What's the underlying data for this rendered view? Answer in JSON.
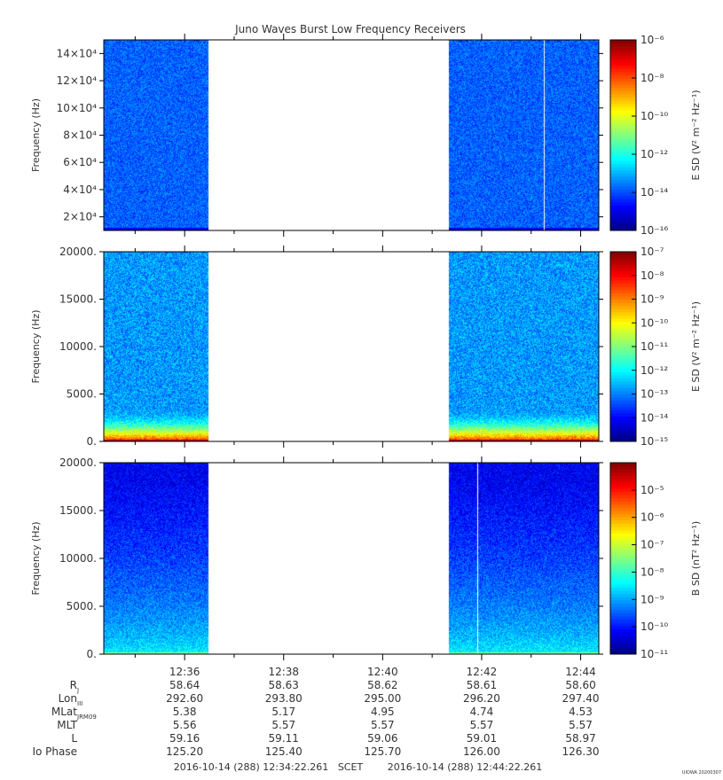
{
  "title": "Juno Waves Burst Low Frequency Receivers",
  "stamp": "UIOWA 20200307",
  "chart_data": [
    {
      "type": "heatmap",
      "panel": "top",
      "ylabel": "Frequency (Hz)",
      "ylim": [
        10000,
        150000
      ],
      "yticks": [
        {
          "value": 20000,
          "label": "2×10⁴"
        },
        {
          "value": 40000,
          "label": "4×10⁴"
        },
        {
          "value": 60000,
          "label": "6×10⁴"
        },
        {
          "value": 80000,
          "label": "8×10⁴"
        },
        {
          "value": 100000,
          "label": "10×10⁴"
        },
        {
          "value": 120000,
          "label": "12×10⁴"
        },
        {
          "value": 140000,
          "label": "14×10⁴"
        }
      ],
      "colorbar": {
        "label": "E SD (V² m⁻² Hz⁻¹)",
        "log_range": [
          -16,
          -6
        ],
        "ticks": [
          {
            "exp": -6,
            "label": "10⁻⁶"
          },
          {
            "exp": -8,
            "label": "10⁻⁸"
          },
          {
            "exp": -10,
            "label": "10⁻¹⁰"
          },
          {
            "exp": -12,
            "label": "10⁻¹²"
          },
          {
            "exp": -14,
            "label": "10⁻¹⁴"
          },
          {
            "exp": -16,
            "label": "10⁻¹⁶"
          }
        ]
      },
      "data_segments": [
        {
          "x_start": "12:34:22",
          "x_end": "12:36:28"
        },
        {
          "x_start": "12:41:20",
          "x_end": "12:44:22"
        }
      ],
      "gap_lines": [
        "12:43:15"
      ],
      "profile": "uniform",
      "background_log": -13.8,
      "low_band": {
        "y_max": 12000,
        "log": -15
      }
    },
    {
      "type": "heatmap",
      "panel": "middle",
      "ylabel": "Frequency (Hz)",
      "ylim": [
        0,
        20000
      ],
      "yticks": [
        {
          "value": 0,
          "label": "0."
        },
        {
          "value": 5000,
          "label": "5000."
        },
        {
          "value": 10000,
          "label": "10000."
        },
        {
          "value": 15000,
          "label": "15000."
        },
        {
          "value": 20000,
          "label": "20000."
        }
      ],
      "colorbar": {
        "label": "E SD (V² m⁻² Hz⁻¹)",
        "log_range": [
          -15,
          -7
        ],
        "ticks": [
          {
            "exp": -7,
            "label": "10⁻⁷"
          },
          {
            "exp": -8,
            "label": "10⁻⁸"
          },
          {
            "exp": -9,
            "label": "10⁻⁹"
          },
          {
            "exp": -10,
            "label": "10⁻¹⁰"
          },
          {
            "exp": -11,
            "label": "10⁻¹¹"
          },
          {
            "exp": -12,
            "label": "10⁻¹²"
          },
          {
            "exp": -13,
            "label": "10⁻¹³"
          },
          {
            "exp": -14,
            "label": "10⁻¹⁴"
          },
          {
            "exp": -15,
            "label": "10⁻¹⁵"
          }
        ]
      },
      "data_segments": [
        {
          "x_start": "12:34:22",
          "x_end": "12:36:28"
        },
        {
          "x_start": "12:41:20",
          "x_end": "12:44:22"
        }
      ],
      "gap_lines": [],
      "profile": "low_enhanced",
      "background_log": -12.8,
      "low_band": {
        "y_max": 3500,
        "log": -8
      }
    },
    {
      "type": "heatmap",
      "panel": "bottom",
      "ylabel": "Frequency (Hz)",
      "ylim": [
        0,
        20000
      ],
      "yticks": [
        {
          "value": 0,
          "label": "0."
        },
        {
          "value": 5000,
          "label": "5000."
        },
        {
          "value": 10000,
          "label": "10000."
        },
        {
          "value": 15000,
          "label": "15000."
        },
        {
          "value": 20000,
          "label": "20000."
        }
      ],
      "colorbar": {
        "label": "B SD (nT² Hz⁻¹)",
        "log_range": [
          -11,
          -4
        ],
        "ticks": [
          {
            "exp": -5,
            "label": "10⁻⁵"
          },
          {
            "exp": -6,
            "label": "10⁻⁶"
          },
          {
            "exp": -7,
            "label": "10⁻⁷"
          },
          {
            "exp": -8,
            "label": "10⁻⁸"
          },
          {
            "exp": -9,
            "label": "10⁻⁹"
          },
          {
            "exp": -10,
            "label": "10⁻¹⁰"
          },
          {
            "exp": -11,
            "label": "10⁻¹¹"
          }
        ]
      },
      "data_segments": [
        {
          "x_start": "12:34:22",
          "x_end": "12:36:28"
        },
        {
          "x_start": "12:41:20",
          "x_end": "12:44:22"
        }
      ],
      "gap_lines": [
        "12:41:55"
      ],
      "profile": "gradient",
      "background_log": -10.2,
      "low_band": {
        "y_max": 2500,
        "log": -8.2
      }
    }
  ],
  "x_axis": {
    "range": [
      "12:34:22",
      "12:44:22"
    ],
    "ticks": [
      "12:36",
      "12:38",
      "12:40",
      "12:42",
      "12:44"
    ],
    "minor_ticks": [
      "12:35",
      "12:37",
      "12:39",
      "12:41",
      "12:43"
    ]
  },
  "ephemeris": {
    "rows": [
      {
        "label": "R",
        "sub": "J",
        "values": [
          "58.64",
          "58.63",
          "58.62",
          "58.61",
          "58.60"
        ]
      },
      {
        "label": "Lon",
        "sub": "III",
        "values": [
          "292.60",
          "293.80",
          "295.00",
          "296.20",
          "297.40"
        ]
      },
      {
        "label": "MLat",
        "sub": "JRM09",
        "values": [
          "5.38",
          "5.17",
          "4.95",
          "4.74",
          "4.53"
        ]
      },
      {
        "label": "MLT",
        "sub": "",
        "values": [
          "5.56",
          "5.57",
          "5.57",
          "5.57",
          "5.57"
        ]
      },
      {
        "label": "L",
        "sub": "",
        "values": [
          "59.16",
          "59.11",
          "59.06",
          "59.01",
          "58.97"
        ]
      },
      {
        "label": "Io Phase",
        "sub": "",
        "values": [
          "125.20",
          "125.40",
          "125.70",
          "126.00",
          "126.30"
        ]
      }
    ]
  },
  "time_range": {
    "start": "2016-10-14 (288) 12:34:22.261",
    "frame": "SCET",
    "end": "2016-10-14 (288) 12:44:22.261"
  },
  "colors": {
    "text": "#333333",
    "axis": "#000000",
    "background": "#ffffff"
  }
}
